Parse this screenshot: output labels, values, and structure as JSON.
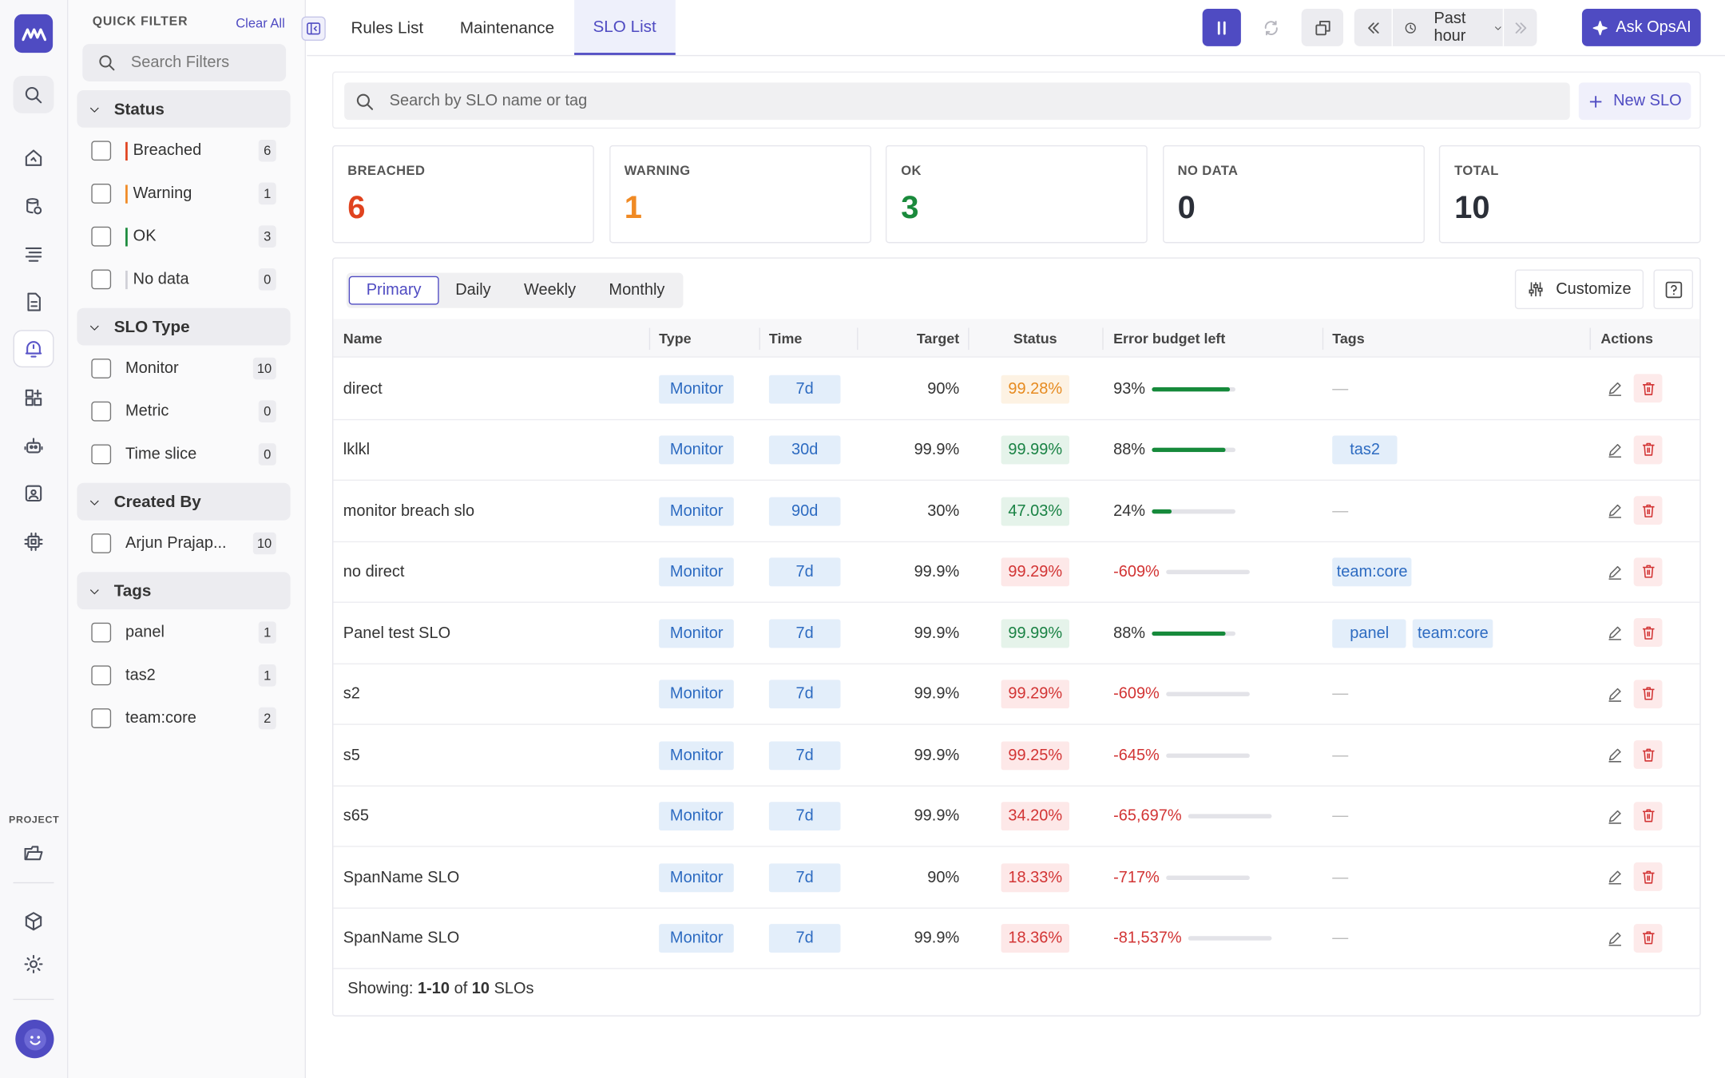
{
  "quick_filter": {
    "title": "QUICK FILTER",
    "clear_label": "Clear All",
    "search_placeholder": "Search Filters",
    "sections": {
      "status": {
        "title": "Status",
        "items": [
          {
            "label": "Breached",
            "count": "6",
            "color": "#e0431f"
          },
          {
            "label": "Warning",
            "count": "1",
            "color": "#f08a24"
          },
          {
            "label": "OK",
            "count": "3",
            "color": "#1a8a3c"
          },
          {
            "label": "No data",
            "count": "0",
            "color": "#cfcfd6"
          }
        ]
      },
      "slo_type": {
        "title": "SLO Type",
        "items": [
          {
            "label": "Monitor",
            "count": "10"
          },
          {
            "label": "Metric",
            "count": "0"
          },
          {
            "label": "Time slice",
            "count": "0"
          }
        ]
      },
      "created_by": {
        "title": "Created By",
        "items": [
          {
            "label": "Arjun Prajap...",
            "count": "10"
          }
        ]
      },
      "tags": {
        "title": "Tags",
        "items": [
          {
            "label": "panel",
            "count": "1"
          },
          {
            "label": "tas2",
            "count": "1"
          },
          {
            "label": "team:core",
            "count": "2"
          }
        ]
      }
    }
  },
  "rail": {
    "project_label": "PROJECT"
  },
  "topbar": {
    "tabs": [
      {
        "label": "Rules List",
        "active": false
      },
      {
        "label": "Maintenance",
        "active": false
      },
      {
        "label": "SLO List",
        "active": true
      }
    ],
    "time_range": "Past hour",
    "ask_label": "Ask OpsAI",
    "accent": "#4f4bc2"
  },
  "search": {
    "placeholder": "Search by SLO name or tag",
    "new_label": "New SLO"
  },
  "summary": [
    {
      "label": "BREACHED",
      "value": "6",
      "color": "#e0431f"
    },
    {
      "label": "WARNING",
      "value": "1",
      "color": "#f08a24"
    },
    {
      "label": "OK",
      "value": "3",
      "color": "#1a8a3c"
    },
    {
      "label": "NO DATA",
      "value": "0",
      "color": "#2b2f38"
    },
    {
      "label": "TOTAL",
      "value": "10",
      "color": "#2b2f38"
    }
  ],
  "view_tabs": [
    {
      "label": "Primary",
      "active": true
    },
    {
      "label": "Daily",
      "active": false
    },
    {
      "label": "Weekly",
      "active": false
    },
    {
      "label": "Monthly",
      "active": false
    }
  ],
  "customize_label": "Customize",
  "table": {
    "columns": {
      "name": "Name",
      "type": "Type",
      "time": "Time",
      "target": "Target",
      "status": "Status",
      "budget": "Error budget left",
      "tags": "Tags",
      "actions": "Actions"
    },
    "empty_tag": "—",
    "rows": [
      {
        "name": "direct",
        "type": "Monitor",
        "time": "7d",
        "target": "90%",
        "status": "99.28%",
        "status_kind": "warn",
        "budget": "93%",
        "budget_fill": 0.93,
        "budget_kind": "ok",
        "tags": []
      },
      {
        "name": "lklkl",
        "type": "Monitor",
        "time": "30d",
        "target": "99.9%",
        "status": "99.99%",
        "status_kind": "ok",
        "budget": "88%",
        "budget_fill": 0.88,
        "budget_kind": "ok",
        "tags": [
          {
            "label": "tas2",
            "wide": true
          }
        ]
      },
      {
        "name": "monitor breach slo",
        "type": "Monitor",
        "time": "90d",
        "target": "30%",
        "status": "47.03%",
        "status_kind": "ok",
        "budget": "24%",
        "budget_fill": 0.24,
        "budget_kind": "ok",
        "tags": []
      },
      {
        "name": "no direct",
        "type": "Monitor",
        "time": "7d",
        "target": "99.9%",
        "status": "99.29%",
        "status_kind": "bad",
        "budget": "-609%",
        "budget_fill": 0,
        "budget_kind": "bad",
        "tags": [
          {
            "label": "team:core",
            "wide": false
          }
        ]
      },
      {
        "name": "Panel test SLO",
        "type": "Monitor",
        "time": "7d",
        "target": "99.9%",
        "status": "99.99%",
        "status_kind": "ok",
        "budget": "88%",
        "budget_fill": 0.88,
        "budget_kind": "ok",
        "tags": [
          {
            "label": "panel",
            "wide": true
          },
          {
            "label": "team:core",
            "wide": false
          }
        ]
      },
      {
        "name": "s2",
        "type": "Monitor",
        "time": "7d",
        "target": "99.9%",
        "status": "99.29%",
        "status_kind": "bad",
        "budget": "-609%",
        "budget_fill": 0,
        "budget_kind": "bad",
        "tags": []
      },
      {
        "name": "s5",
        "type": "Monitor",
        "time": "7d",
        "target": "99.9%",
        "status": "99.25%",
        "status_kind": "bad",
        "budget": "-645%",
        "budget_fill": 0,
        "budget_kind": "bad",
        "tags": []
      },
      {
        "name": "s65",
        "type": "Monitor",
        "time": "7d",
        "target": "99.9%",
        "status": "34.20%",
        "status_kind": "bad",
        "budget": "-65,697%",
        "budget_fill": 0,
        "budget_kind": "bad",
        "tags": []
      },
      {
        "name": "SpanName SLO",
        "type": "Monitor",
        "time": "7d",
        "target": "90%",
        "status": "18.33%",
        "status_kind": "bad",
        "budget": "-717%",
        "budget_fill": 0,
        "budget_kind": "bad",
        "tags": []
      },
      {
        "name": "SpanName SLO",
        "type": "Monitor",
        "time": "7d",
        "target": "99.9%",
        "status": "18.36%",
        "status_kind": "bad",
        "budget": "-81,537%",
        "budget_fill": 0,
        "budget_kind": "bad",
        "tags": []
      }
    ]
  },
  "footer": {
    "prefix": "Showing:",
    "range": "1-10",
    "of": "of",
    "total": "10",
    "suffix": "SLOs"
  }
}
